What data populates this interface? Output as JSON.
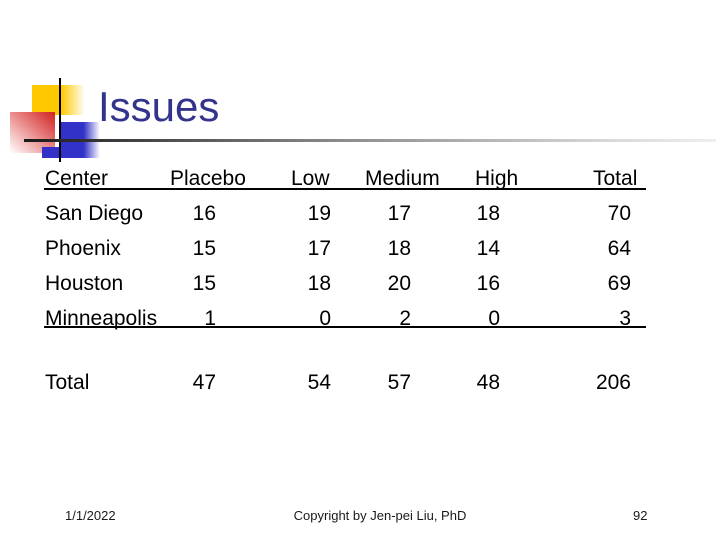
{
  "slide": {
    "title": "Issues",
    "page_number": "92",
    "footer": {
      "date": "1/1/2022",
      "copyright": "Copyright by Jen-pei Liu, PhD"
    }
  },
  "table": {
    "columns": [
      "Center",
      "Placebo",
      "Low",
      "Medium",
      "High",
      "Total"
    ],
    "rows": [
      {
        "label": "San Diego",
        "values": [
          "16",
          "19",
          "17",
          "18",
          "70"
        ]
      },
      {
        "label": "Phoenix",
        "values": [
          "15",
          "17",
          "18",
          "14",
          "64"
        ]
      },
      {
        "label": "Houston",
        "values": [
          "15",
          "18",
          "20",
          "16",
          "69"
        ]
      },
      {
        "label": "Minneapolis",
        "values": [
          "1",
          "0",
          "2",
          "0",
          "3"
        ]
      }
    ],
    "total": {
      "label": "Total",
      "values": [
        "47",
        "54",
        "57",
        "48",
        "206"
      ]
    }
  },
  "colors": {
    "title": "#33338C",
    "accent_yellow": "#FFC800",
    "accent_red": "#D42A2A",
    "accent_blue": "#3232C8",
    "rule": "#000000",
    "text": "#000000"
  }
}
